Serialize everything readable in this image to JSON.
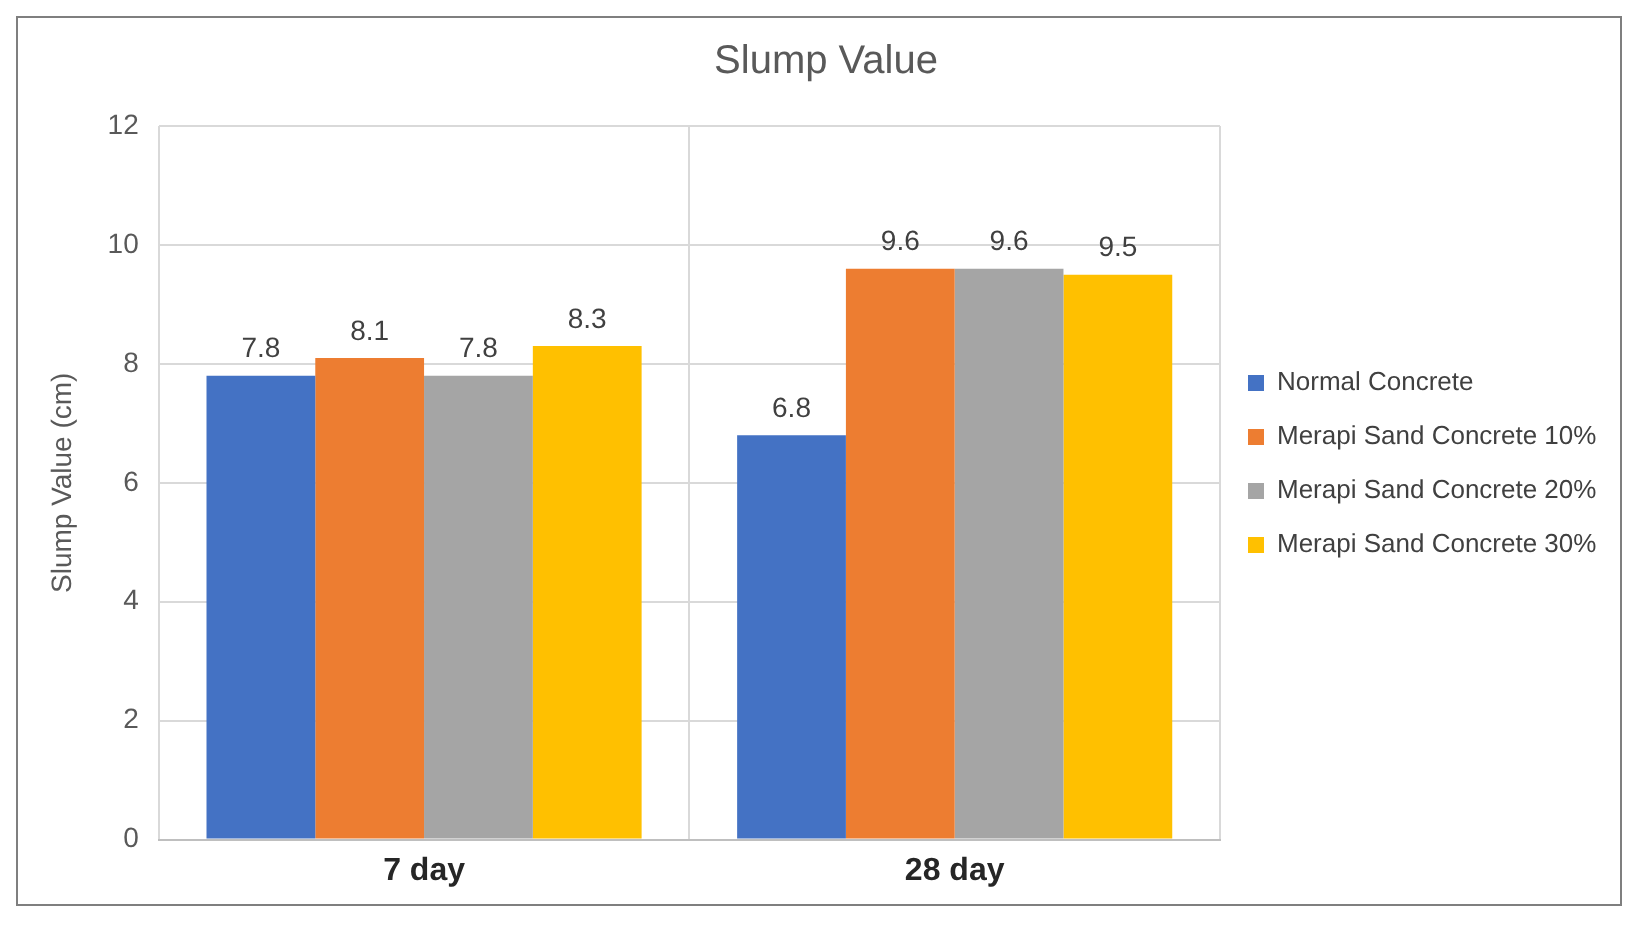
{
  "chart_data": {
    "type": "bar",
    "title": "Slump Value",
    "ylabel": "Slump Value (cm)",
    "categories": [
      "7 day",
      "28 day"
    ],
    "series": [
      {
        "name": "Normal Concrete",
        "color": "#4472c4",
        "values": [
          7.8,
          6.8
        ]
      },
      {
        "name": "Merapi Sand Concrete 10%",
        "color": "#ed7d31",
        "values": [
          8.1,
          9.6
        ]
      },
      {
        "name": "Merapi Sand Concrete 20%",
        "color": "#a5a5a5",
        "values": [
          7.8,
          9.6
        ]
      },
      {
        "name": "Merapi Sand Concrete 30%",
        "color": "#ffc000",
        "values": [
          8.3,
          9.5
        ]
      }
    ],
    "ylim": [
      0,
      12
    ],
    "yticks": [
      0,
      2,
      4,
      6,
      8,
      10,
      12
    ],
    "grid": true,
    "legend": "right",
    "data_labels": true
  }
}
